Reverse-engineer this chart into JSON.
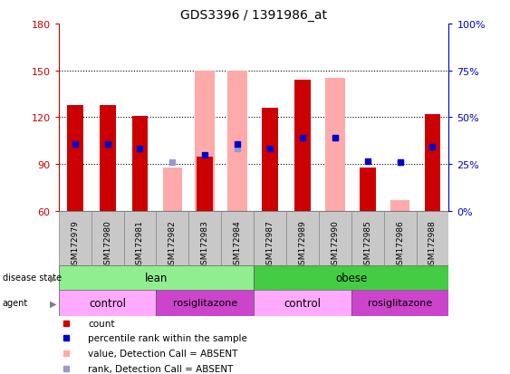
{
  "title": "GDS3396 / 1391986_at",
  "samples": [
    "GSM172979",
    "GSM172980",
    "GSM172981",
    "GSM172982",
    "GSM172983",
    "GSM172984",
    "GSM172987",
    "GSM172989",
    "GSM172990",
    "GSM172985",
    "GSM172986",
    "GSM172988"
  ],
  "ylim": [
    60,
    180
  ],
  "y_ticks": [
    60,
    90,
    120,
    150,
    180
  ],
  "red_bars": [
    128,
    128,
    121,
    null,
    95,
    null,
    126,
    144,
    null,
    88,
    null,
    122
  ],
  "pink_bars": [
    null,
    null,
    null,
    88,
    150,
    150,
    null,
    null,
    145,
    null,
    67,
    null
  ],
  "blue_squares": [
    103,
    103,
    100,
    null,
    96,
    103,
    100,
    107,
    107,
    92,
    91,
    101
  ],
  "light_blue_squares": [
    null,
    null,
    null,
    91,
    null,
    100,
    null,
    null,
    107,
    null,
    91,
    null
  ],
  "lean_color": "#90ee90",
  "obese_color": "#44cc44",
  "control_color": "#ffaaff",
  "rosi_color": "#cc44cc",
  "red_color": "#cc0000",
  "pink_color": "#ffaaaa",
  "blue_color": "#0000cc",
  "light_blue_color": "#9999cc",
  "plot_bg": "#f0f0f0",
  "sample_bg": "#c8c8c8",
  "y_label_color": "#cc0000",
  "y2_label_color": "#0000cc",
  "bar_width": 0.5,
  "pink_bar_width": 0.6
}
